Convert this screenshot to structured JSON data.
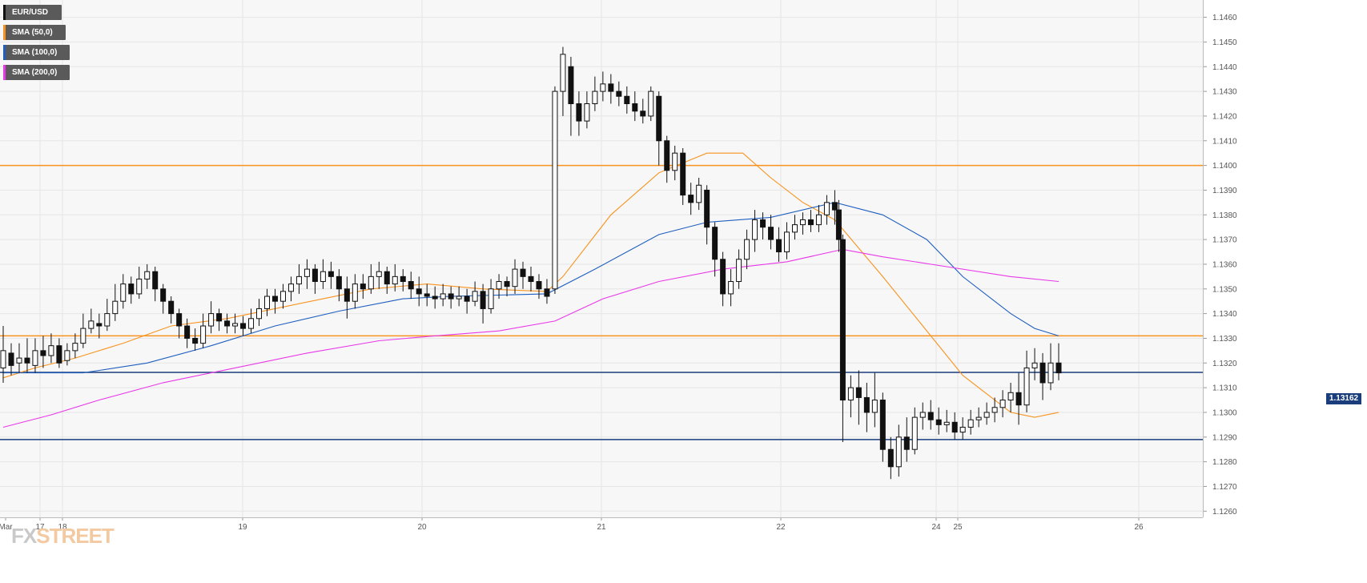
{
  "chart_data": {
    "type": "candlestick",
    "symbol": "EUR/USD",
    "last_price": "1.13162",
    "y_axis": {
      "ticks": [
        "1.1260",
        "1.1270",
        "1.1280",
        "1.1290",
        "1.1300",
        "1.1310",
        "1.1320",
        "1.1330",
        "1.1340",
        "1.1350",
        "1.1360",
        "1.1370",
        "1.1380",
        "1.1390",
        "1.1400",
        "1.1410",
        "1.1420",
        "1.1430",
        "1.1440",
        "1.1450",
        "1.1460"
      ],
      "range": [
        1.12575,
        1.1467
      ]
    },
    "x_axis": {
      "ticks": [
        "Mar",
        "17",
        "18",
        "19",
        "20",
        "21",
        "22",
        "24",
        "25",
        "26"
      ]
    },
    "legend": [
      {
        "label": "EUR/USD",
        "color": "#111111"
      },
      {
        "label": "SMA (50,0)",
        "color": "#f7931e"
      },
      {
        "label": "SMA (100,0)",
        "color": "#1f5fbf"
      },
      {
        "label": "SMA (200,0)",
        "color": "#e839e8"
      }
    ],
    "horizontal_levels": [
      {
        "value": 1.14,
        "color": "#f7931e"
      },
      {
        "value": 1.1331,
        "color": "#f7931e"
      },
      {
        "value": 1.1289,
        "color": "#1a3d7c"
      },
      {
        "value": 1.13162,
        "color": "#1a3d7c"
      }
    ],
    "series": [
      {
        "name": "SMA (50,0)",
        "color": "#f7931e",
        "points": [
          [
            0,
            1.1314
          ],
          [
            40,
            1.1318
          ],
          [
            90,
            1.1322
          ],
          [
            150,
            1.1328
          ],
          [
            210,
            1.1335
          ],
          [
            280,
            1.1338
          ],
          [
            340,
            1.1342
          ],
          [
            400,
            1.1346
          ],
          [
            460,
            1.135
          ],
          [
            530,
            1.1352
          ],
          [
            600,
            1.135
          ],
          [
            680,
            1.1349
          ],
          [
            700,
            1.1355
          ],
          [
            760,
            1.138
          ],
          [
            820,
            1.1397
          ],
          [
            880,
            1.1405
          ],
          [
            925,
            1.1405
          ],
          [
            960,
            1.1395
          ],
          [
            1000,
            1.1385
          ],
          [
            1040,
            1.1378
          ],
          [
            1100,
            1.1355
          ],
          [
            1150,
            1.1335
          ],
          [
            1200,
            1.1315
          ],
          [
            1260,
            1.13
          ],
          [
            1290,
            1.1298
          ],
          [
            1320,
            1.13
          ]
        ]
      },
      {
        "name": "SMA (100,0)",
        "color": "#1f5fbf",
        "points": [
          [
            0,
            1.1316
          ],
          [
            100,
            1.1316
          ],
          [
            180,
            1.132
          ],
          [
            260,
            1.1327
          ],
          [
            340,
            1.1335
          ],
          [
            420,
            1.1341
          ],
          [
            500,
            1.1346
          ],
          [
            560,
            1.1347
          ],
          [
            680,
            1.1348
          ],
          [
            740,
            1.1358
          ],
          [
            820,
            1.1372
          ],
          [
            880,
            1.1377
          ],
          [
            960,
            1.1379
          ],
          [
            1040,
            1.1385
          ],
          [
            1100,
            1.138
          ],
          [
            1155,
            1.137
          ],
          [
            1200,
            1.1355
          ],
          [
            1260,
            1.134
          ],
          [
            1290,
            1.1334
          ],
          [
            1320,
            1.1331
          ]
        ]
      },
      {
        "name": "SMA (200,0)",
        "color": "#e839e8",
        "points": [
          [
            0,
            1.1294
          ],
          [
            60,
            1.1299
          ],
          [
            120,
            1.1305
          ],
          [
            200,
            1.1312
          ],
          [
            290,
            1.1318
          ],
          [
            380,
            1.1324
          ],
          [
            470,
            1.1329
          ],
          [
            540,
            1.1331
          ],
          [
            620,
            1.1333
          ],
          [
            690,
            1.1337
          ],
          [
            750,
            1.1346
          ],
          [
            820,
            1.1353
          ],
          [
            900,
            1.1358
          ],
          [
            980,
            1.1361
          ],
          [
            1050,
            1.1366
          ],
          [
            1100,
            1.1363
          ],
          [
            1180,
            1.1359
          ],
          [
            1260,
            1.1355
          ],
          [
            1320,
            1.1353
          ]
        ]
      }
    ],
    "candles": [
      [
        0,
        1.1318,
        1.1325,
        1.1335,
        1.1312
      ],
      [
        10,
        1.1324,
        1.1319,
        1.1328,
        1.1315
      ],
      [
        20,
        1.132,
        1.1322,
        1.1328,
        1.1316
      ],
      [
        30,
        1.1322,
        1.132,
        1.133,
        1.1316
      ],
      [
        40,
        1.1319,
        1.1325,
        1.133,
        1.1316
      ],
      [
        50,
        1.1325,
        1.1323,
        1.1331,
        1.1318
      ],
      [
        60,
        1.1323,
        1.1327,
        1.1332,
        1.132
      ],
      [
        70,
        1.1327,
        1.132,
        1.133,
        1.1318
      ],
      [
        80,
        1.1321,
        1.1325,
        1.1328,
        1.1319
      ],
      [
        90,
        1.1325,
        1.1328,
        1.1332,
        1.1322
      ],
      [
        100,
        1.1328,
        1.1334,
        1.134,
        1.1326
      ],
      [
        110,
        1.1334,
        1.1337,
        1.1342,
        1.1332
      ],
      [
        120,
        1.1336,
        1.1335,
        1.134,
        1.133
      ],
      [
        130,
        1.1335,
        1.134,
        1.1346,
        1.1333
      ],
      [
        140,
        1.134,
        1.1345,
        1.1352,
        1.1337
      ],
      [
        150,
        1.1345,
        1.1352,
        1.1356,
        1.1342
      ],
      [
        160,
        1.1352,
        1.1348,
        1.1355,
        1.1344
      ],
      [
        170,
        1.1348,
        1.1354,
        1.1359,
        1.1346
      ],
      [
        180,
        1.1354,
        1.1357,
        1.136,
        1.135
      ],
      [
        190,
        1.1357,
        1.135,
        1.1359,
        1.1345
      ],
      [
        200,
        1.135,
        1.1345,
        1.1352,
        1.134
      ],
      [
        210,
        1.1345,
        1.134,
        1.1347,
        1.1336
      ],
      [
        220,
        1.134,
        1.1335,
        1.1342,
        1.133
      ],
      [
        230,
        1.1335,
        1.133,
        1.1338,
        1.1326
      ],
      [
        240,
        1.133,
        1.1328,
        1.1334,
        1.1325
      ],
      [
        250,
        1.1328,
        1.1335,
        1.134,
        1.1326
      ],
      [
        260,
        1.1335,
        1.134,
        1.1345,
        1.1332
      ],
      [
        270,
        1.134,
        1.1337,
        1.1342,
        1.1333
      ],
      [
        280,
        1.1337,
        1.1335,
        1.134,
        1.1332
      ],
      [
        290,
        1.1335,
        1.1336,
        1.134,
        1.1332
      ],
      [
        300,
        1.1336,
        1.1334,
        1.1339,
        1.1331
      ],
      [
        310,
        1.1334,
        1.1338,
        1.1342,
        1.1332
      ],
      [
        320,
        1.1338,
        1.1342,
        1.1346,
        1.1335
      ],
      [
        330,
        1.1342,
        1.1347,
        1.135,
        1.1339
      ],
      [
        340,
        1.1347,
        1.1345,
        1.135,
        1.134
      ],
      [
        350,
        1.1345,
        1.1349,
        1.1352,
        1.1342
      ],
      [
        360,
        1.1349,
        1.1352,
        1.1355,
        1.1345
      ],
      [
        370,
        1.1352,
        1.1355,
        1.136,
        1.1348
      ],
      [
        380,
        1.1355,
        1.1358,
        1.1362,
        1.135
      ],
      [
        390,
        1.1358,
        1.1353,
        1.136,
        1.1348
      ],
      [
        400,
        1.1353,
        1.1357,
        1.1362,
        1.135
      ],
      [
        410,
        1.1357,
        1.1355,
        1.1361,
        1.135
      ],
      [
        420,
        1.1355,
        1.135,
        1.1358,
        1.1345
      ],
      [
        430,
        1.135,
        1.1345,
        1.1355,
        1.1338
      ],
      [
        440,
        1.1345,
        1.1352,
        1.1356,
        1.1342
      ],
      [
        450,
        1.1352,
        1.135,
        1.1356,
        1.1346
      ],
      [
        460,
        1.135,
        1.1355,
        1.136,
        1.1348
      ],
      [
        470,
        1.1355,
        1.1357,
        1.1361,
        1.135
      ],
      [
        480,
        1.1357,
        1.1352,
        1.1359,
        1.1348
      ],
      [
        490,
        1.1352,
        1.1355,
        1.136,
        1.1349
      ],
      [
        500,
        1.1355,
        1.1353,
        1.1358,
        1.1349
      ],
      [
        510,
        1.1353,
        1.135,
        1.1357,
        1.1346
      ],
      [
        520,
        1.135,
        1.1348,
        1.1355,
        1.1343
      ],
      [
        530,
        1.1348,
        1.1347,
        1.1352,
        1.1343
      ],
      [
        540,
        1.1347,
        1.1346,
        1.1351,
        1.1342
      ],
      [
        550,
        1.1346,
        1.1348,
        1.1352,
        1.1343
      ],
      [
        560,
        1.1348,
        1.1346,
        1.1351,
        1.1342
      ],
      [
        570,
        1.1346,
        1.1347,
        1.1351,
        1.1343
      ],
      [
        580,
        1.1347,
        1.1345,
        1.135,
        1.134
      ],
      [
        590,
        1.1345,
        1.1349,
        1.1353,
        1.1343
      ],
      [
        600,
        1.1349,
        1.1342,
        1.1352,
        1.1336
      ],
      [
        610,
        1.1342,
        1.135,
        1.1354,
        1.134
      ],
      [
        620,
        1.135,
        1.1353,
        1.1356,
        1.1346
      ],
      [
        630,
        1.1353,
        1.1351,
        1.1355,
        1.1347
      ],
      [
        640,
        1.1351,
        1.1358,
        1.1362,
        1.1348
      ],
      [
        650,
        1.1358,
        1.1355,
        1.1361,
        1.135
      ],
      [
        660,
        1.1355,
        1.1353,
        1.1359,
        1.1349
      ],
      [
        670,
        1.1353,
        1.135,
        1.1356,
        1.1346
      ],
      [
        680,
        1.135,
        1.1347,
        1.1354,
        1.1344
      ],
      [
        690,
        1.135,
        1.143,
        1.1432,
        1.1348
      ],
      [
        700,
        1.143,
        1.1445,
        1.1448,
        1.142
      ],
      [
        710,
        1.144,
        1.1425,
        1.1444,
        1.1412
      ],
      [
        720,
        1.1425,
        1.1418,
        1.143,
        1.1412
      ],
      [
        730,
        1.1418,
        1.1425,
        1.143,
        1.1415
      ],
      [
        740,
        1.1425,
        1.143,
        1.1436,
        1.1422
      ],
      [
        750,
        1.143,
        1.1433,
        1.1438,
        1.1426
      ],
      [
        760,
        1.1433,
        1.143,
        1.1437,
        1.1425
      ],
      [
        770,
        1.143,
        1.1428,
        1.1434,
        1.1424
      ],
      [
        780,
        1.1428,
        1.1425,
        1.1432,
        1.1421
      ],
      [
        790,
        1.1425,
        1.1422,
        1.143,
        1.1418
      ],
      [
        800,
        1.1422,
        1.142,
        1.1427,
        1.1417
      ],
      [
        810,
        1.142,
        1.143,
        1.1432,
        1.1418
      ],
      [
        820,
        1.1428,
        1.141,
        1.143,
        1.14
      ],
      [
        830,
        1.141,
        1.1398,
        1.1412,
        1.1393
      ],
      [
        840,
        1.1398,
        1.1405,
        1.1408,
        1.1394
      ],
      [
        850,
        1.1405,
        1.1388,
        1.1407,
        1.1384
      ],
      [
        860,
        1.1388,
        1.1385,
        1.1393,
        1.138
      ],
      [
        870,
        1.1385,
        1.1392,
        1.1395,
        1.1382
      ],
      [
        880,
        1.139,
        1.1375,
        1.1392,
        1.1368
      ],
      [
        890,
        1.1375,
        1.1362,
        1.1377,
        1.1355
      ],
      [
        900,
        1.1362,
        1.1348,
        1.1365,
        1.1343
      ],
      [
        910,
        1.1348,
        1.1353,
        1.1358,
        1.1343
      ],
      [
        920,
        1.1353,
        1.1362,
        1.1366,
        1.135
      ],
      [
        930,
        1.1362,
        1.137,
        1.1374,
        1.1358
      ],
      [
        940,
        1.137,
        1.1378,
        1.1382,
        1.1365
      ],
      [
        950,
        1.1378,
        1.1375,
        1.1381,
        1.137
      ],
      [
        960,
        1.1375,
        1.137,
        1.138,
        1.1366
      ],
      [
        970,
        1.137,
        1.1365,
        1.1375,
        1.1361
      ],
      [
        980,
        1.1365,
        1.1373,
        1.1377,
        1.1362
      ],
      [
        990,
        1.1373,
        1.1376,
        1.138,
        1.137
      ],
      [
        1000,
        1.1376,
        1.1378,
        1.1381,
        1.1372
      ],
      [
        1010,
        1.1378,
        1.1376,
        1.1382,
        1.1373
      ],
      [
        1020,
        1.1376,
        1.138,
        1.1384,
        1.1373
      ],
      [
        1030,
        1.138,
        1.1385,
        1.1388,
        1.1376
      ],
      [
        1040,
        1.1385,
        1.1382,
        1.139,
        1.1376
      ],
      [
        1045,
        1.1382,
        1.137,
        1.1386,
        1.1365
      ],
      [
        1050,
        1.137,
        1.1305,
        1.1372,
        1.1288
      ],
      [
        1060,
        1.1305,
        1.131,
        1.1315,
        1.1298
      ],
      [
        1070,
        1.131,
        1.1306,
        1.1317,
        1.1295
      ],
      [
        1080,
        1.1306,
        1.13,
        1.1312,
        1.1292
      ],
      [
        1090,
        1.13,
        1.1305,
        1.1316,
        1.1294
      ],
      [
        1100,
        1.1305,
        1.1285,
        1.1308,
        1.128
      ],
      [
        1110,
        1.1285,
        1.1278,
        1.129,
        1.1273
      ],
      [
        1120,
        1.1278,
        1.129,
        1.1295,
        1.1274
      ],
      [
        1130,
        1.129,
        1.1285,
        1.1298,
        1.128
      ],
      [
        1140,
        1.1285,
        1.1298,
        1.1302,
        1.1283
      ],
      [
        1150,
        1.1298,
        1.13,
        1.1304,
        1.1293
      ],
      [
        1160,
        1.13,
        1.1297,
        1.1305,
        1.1293
      ],
      [
        1170,
        1.1297,
        1.1295,
        1.1302,
        1.1291
      ],
      [
        1180,
        1.1295,
        1.1296,
        1.1301,
        1.1292
      ],
      [
        1190,
        1.1296,
        1.1292,
        1.13,
        1.1289
      ],
      [
        1200,
        1.1292,
        1.1294,
        1.1298,
        1.1289
      ],
      [
        1210,
        1.1294,
        1.1297,
        1.1301,
        1.1291
      ],
      [
        1220,
        1.1297,
        1.1298,
        1.1302,
        1.1294
      ],
      [
        1230,
        1.1298,
        1.13,
        1.1304,
        1.1295
      ],
      [
        1240,
        1.13,
        1.1302,
        1.1306,
        1.1296
      ],
      [
        1250,
        1.1302,
        1.1305,
        1.1309,
        1.1298
      ],
      [
        1260,
        1.1305,
        1.1308,
        1.1312,
        1.13
      ],
      [
        1270,
        1.1308,
        1.1303,
        1.1316,
        1.1295
      ],
      [
        1280,
        1.1303,
        1.1318,
        1.1325,
        1.13
      ],
      [
        1290,
        1.1318,
        1.132,
        1.1326,
        1.1313
      ],
      [
        1300,
        1.132,
        1.1312,
        1.1324,
        1.1305
      ],
      [
        1310,
        1.1312,
        1.132,
        1.1328,
        1.1309
      ],
      [
        1320,
        1.132,
        1.1316,
        1.1328,
        1.1313
      ]
    ]
  },
  "watermark": {
    "fx": "FX",
    "street": "STREET"
  }
}
